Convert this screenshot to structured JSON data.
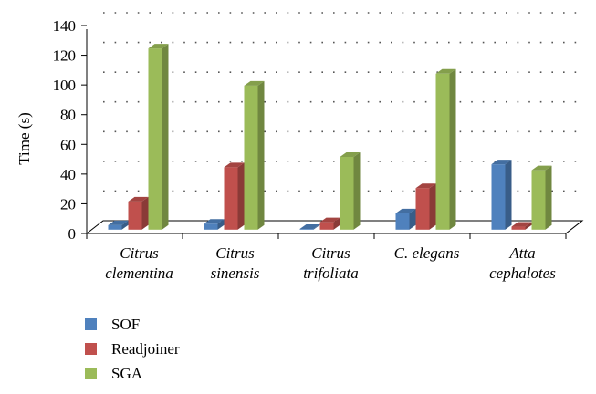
{
  "chart_data": {
    "type": "bar",
    "ylabel": "Time (s)",
    "xlabel": "",
    "ylim": [
      0,
      140
    ],
    "yticks": [
      0,
      20,
      40,
      60,
      80,
      100,
      120,
      140
    ],
    "grid": true,
    "legend_position": "bottom-left",
    "categories": [
      [
        "Citrus",
        "clementina"
      ],
      [
        "Citrus",
        "sinensis"
      ],
      [
        "Citrus",
        "trifoliata"
      ],
      [
        "C. elegans"
      ],
      [
        "Atta",
        "cephalotes"
      ]
    ],
    "series": [
      {
        "name": "SOF",
        "color": "#4f81bd",
        "values": [
          3,
          4,
          0.5,
          11,
          44
        ]
      },
      {
        "name": "Readjoiner",
        "color": "#c0504d",
        "values": [
          19,
          42,
          5,
          28,
          2
        ]
      },
      {
        "name": "SGA",
        "color": "#9bbb59",
        "values": [
          122,
          97,
          49,
          105,
          40
        ]
      }
    ]
  }
}
